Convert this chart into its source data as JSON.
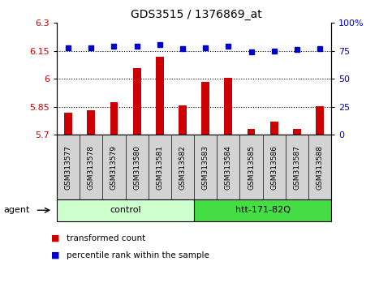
{
  "title": "GDS3515 / 1376869_at",
  "categories": [
    "GSM313577",
    "GSM313578",
    "GSM313579",
    "GSM313580",
    "GSM313581",
    "GSM313582",
    "GSM313583",
    "GSM313584",
    "GSM313585",
    "GSM313586",
    "GSM313587",
    "GSM313588"
  ],
  "bar_values": [
    5.82,
    5.83,
    5.875,
    6.06,
    6.12,
    5.86,
    5.985,
    6.005,
    5.73,
    5.77,
    5.73,
    5.855
  ],
  "percentile_values": [
    78,
    78,
    79,
    79,
    81,
    77,
    78,
    79,
    74,
    75,
    76,
    77
  ],
  "bar_color": "#cc0000",
  "percentile_color": "#0000cc",
  "ylim_left": [
    5.7,
    6.3
  ],
  "ylim_right": [
    0,
    100
  ],
  "yticks_left": [
    5.7,
    5.85,
    6.0,
    6.15,
    6.3
  ],
  "yticks_left_labels": [
    "5.7",
    "5.85",
    "6",
    "6.15",
    "6.3"
  ],
  "yticks_right": [
    0,
    25,
    50,
    75,
    100
  ],
  "yticks_right_labels": [
    "0",
    "25",
    "50",
    "75",
    "100%"
  ],
  "hlines": [
    5.85,
    6.0,
    6.15
  ],
  "group1_label": "control",
  "group2_label": "htt-171-82Q",
  "group1_color": "#ccffcc",
  "group2_color": "#44dd44",
  "agent_label": "agent",
  "legend_bar_label": "transformed count",
  "legend_dot_label": "percentile rank within the sample",
  "bar_color_legend": "#cc0000",
  "percentile_color_legend": "#0000cc",
  "tick_label_color_left": "#cc0000",
  "tick_label_color_right": "#0000cc",
  "bar_bottom": 5.7,
  "xlim": [
    -0.5,
    11.5
  ],
  "sample_bg_color": "#d3d3d3"
}
